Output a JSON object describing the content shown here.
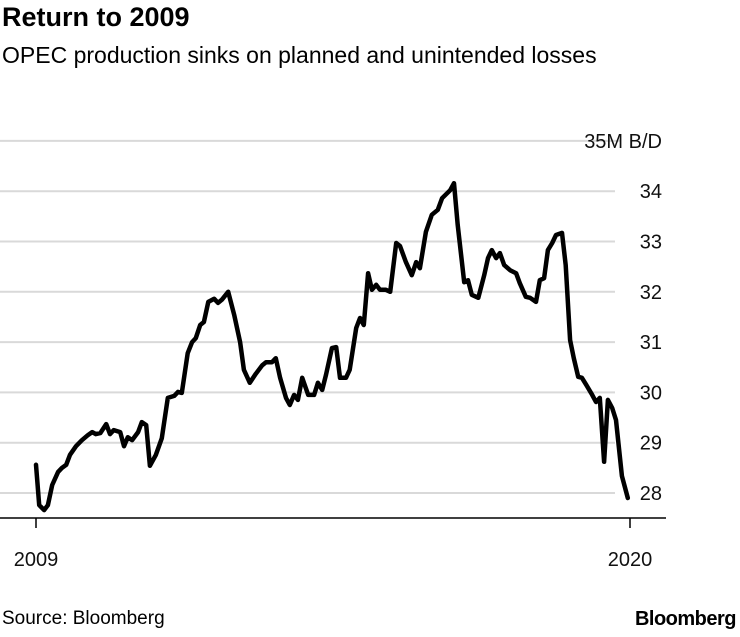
{
  "header": {
    "title": "Return to 2009",
    "subtitle": "OPEC production sinks on planned and unintended losses"
  },
  "footer": {
    "source": "Source: Bloomberg",
    "logo": "Bloomberg"
  },
  "chart_data": {
    "type": "line",
    "title": "Return to 2009",
    "subtitle": "OPEC production sinks on planned and unintended losses",
    "xlabel": "",
    "ylabel": "M B/D",
    "unit_label": "35M B/D",
    "xlim": [
      2009,
      2020
    ],
    "ylim": [
      28,
      35
    ],
    "x_tick_labels": [
      "2009",
      "2020"
    ],
    "x_ticks": [
      2009,
      2020
    ],
    "y_ticks": [
      28,
      29,
      30,
      31,
      32,
      33,
      34,
      35
    ],
    "y_tick_labels": [
      "28",
      "29",
      "30",
      "31",
      "32",
      "33",
      "34",
      "35M B/D"
    ],
    "grid": true,
    "series": [
      {
        "name": "OPEC production",
        "color": "#000000",
        "points": [
          [
            2009.0,
            28.56
          ],
          [
            2009.06,
            27.76
          ],
          [
            2009.15,
            27.66
          ],
          [
            2009.22,
            27.76
          ],
          [
            2009.3,
            28.16
          ],
          [
            2009.41,
            28.42
          ],
          [
            2009.48,
            28.5
          ],
          [
            2009.56,
            28.56
          ],
          [
            2009.63,
            28.76
          ],
          [
            2009.74,
            28.93
          ],
          [
            2009.85,
            29.05
          ],
          [
            2009.96,
            29.15
          ],
          [
            2010.04,
            29.21
          ],
          [
            2010.11,
            29.17
          ],
          [
            2010.19,
            29.19
          ],
          [
            2010.3,
            29.37
          ],
          [
            2010.37,
            29.17
          ],
          [
            2010.44,
            29.25
          ],
          [
            2010.56,
            29.21
          ],
          [
            2010.63,
            28.93
          ],
          [
            2010.7,
            29.11
          ],
          [
            2010.78,
            29.05
          ],
          [
            2010.89,
            29.21
          ],
          [
            2010.96,
            29.41
          ],
          [
            2011.04,
            29.35
          ],
          [
            2011.11,
            28.54
          ],
          [
            2011.22,
            28.76
          ],
          [
            2011.33,
            29.09
          ],
          [
            2011.44,
            29.89
          ],
          [
            2011.56,
            29.93
          ],
          [
            2011.63,
            30.01
          ],
          [
            2011.7,
            29.99
          ],
          [
            2011.81,
            30.78
          ],
          [
            2011.89,
            31.0
          ],
          [
            2011.96,
            31.08
          ],
          [
            2012.04,
            31.34
          ],
          [
            2012.11,
            31.4
          ],
          [
            2012.19,
            31.8
          ],
          [
            2012.3,
            31.86
          ],
          [
            2012.37,
            31.78
          ],
          [
            2012.44,
            31.84
          ],
          [
            2012.56,
            32.0
          ],
          [
            2012.67,
            31.54
          ],
          [
            2012.78,
            31.0
          ],
          [
            2012.85,
            30.45
          ],
          [
            2012.96,
            30.19
          ],
          [
            2013.07,
            30.37
          ],
          [
            2013.19,
            30.54
          ],
          [
            2013.26,
            30.6
          ],
          [
            2013.37,
            30.6
          ],
          [
            2013.44,
            30.68
          ],
          [
            2013.52,
            30.29
          ],
          [
            2013.63,
            29.89
          ],
          [
            2013.7,
            29.75
          ],
          [
            2013.78,
            29.95
          ],
          [
            2013.85,
            29.85
          ],
          [
            2013.93,
            30.29
          ],
          [
            2014.04,
            29.95
          ],
          [
            2014.15,
            29.95
          ],
          [
            2014.22,
            30.19
          ],
          [
            2014.3,
            30.05
          ],
          [
            2014.37,
            30.35
          ],
          [
            2014.48,
            30.88
          ],
          [
            2014.56,
            30.9
          ],
          [
            2014.63,
            30.29
          ],
          [
            2014.74,
            30.29
          ],
          [
            2014.81,
            30.45
          ],
          [
            2014.93,
            31.28
          ],
          [
            2015.0,
            31.48
          ],
          [
            2015.07,
            31.34
          ],
          [
            2015.15,
            32.37
          ],
          [
            2015.22,
            32.04
          ],
          [
            2015.3,
            32.14
          ],
          [
            2015.37,
            32.04
          ],
          [
            2015.48,
            32.04
          ],
          [
            2015.56,
            32.0
          ],
          [
            2015.67,
            32.97
          ],
          [
            2015.74,
            32.91
          ],
          [
            2015.85,
            32.59
          ],
          [
            2015.96,
            32.33
          ],
          [
            2016.04,
            32.59
          ],
          [
            2016.11,
            32.47
          ],
          [
            2016.22,
            33.19
          ],
          [
            2016.33,
            33.53
          ],
          [
            2016.44,
            33.63
          ],
          [
            2016.52,
            33.86
          ],
          [
            2016.67,
            34.02
          ],
          [
            2016.74,
            34.16
          ],
          [
            2016.81,
            33.33
          ],
          [
            2016.93,
            32.19
          ],
          [
            2017.0,
            32.23
          ],
          [
            2017.07,
            31.94
          ],
          [
            2017.19,
            31.88
          ],
          [
            2017.3,
            32.33
          ],
          [
            2017.37,
            32.67
          ],
          [
            2017.44,
            32.83
          ],
          [
            2017.52,
            32.67
          ],
          [
            2017.59,
            32.77
          ],
          [
            2017.67,
            32.53
          ],
          [
            2017.78,
            32.43
          ],
          [
            2017.89,
            32.37
          ],
          [
            2017.96,
            32.17
          ],
          [
            2018.07,
            31.9
          ],
          [
            2018.15,
            31.88
          ],
          [
            2018.26,
            31.8
          ],
          [
            2018.33,
            32.23
          ],
          [
            2018.41,
            32.27
          ],
          [
            2018.48,
            32.83
          ],
          [
            2018.56,
            32.97
          ],
          [
            2018.63,
            33.13
          ],
          [
            2018.74,
            33.17
          ],
          [
            2018.81,
            32.53
          ],
          [
            2018.89,
            31.04
          ],
          [
            2018.96,
            30.68
          ],
          [
            2019.04,
            30.31
          ],
          [
            2019.11,
            30.29
          ],
          [
            2019.19,
            30.15
          ],
          [
            2019.3,
            29.95
          ],
          [
            2019.37,
            29.81
          ],
          [
            2019.44,
            29.89
          ],
          [
            2019.52,
            28.62
          ],
          [
            2019.59,
            29.85
          ],
          [
            2019.67,
            29.69
          ],
          [
            2019.74,
            29.45
          ],
          [
            2019.85,
            28.34
          ],
          [
            2019.96,
            27.9
          ]
        ]
      }
    ]
  }
}
